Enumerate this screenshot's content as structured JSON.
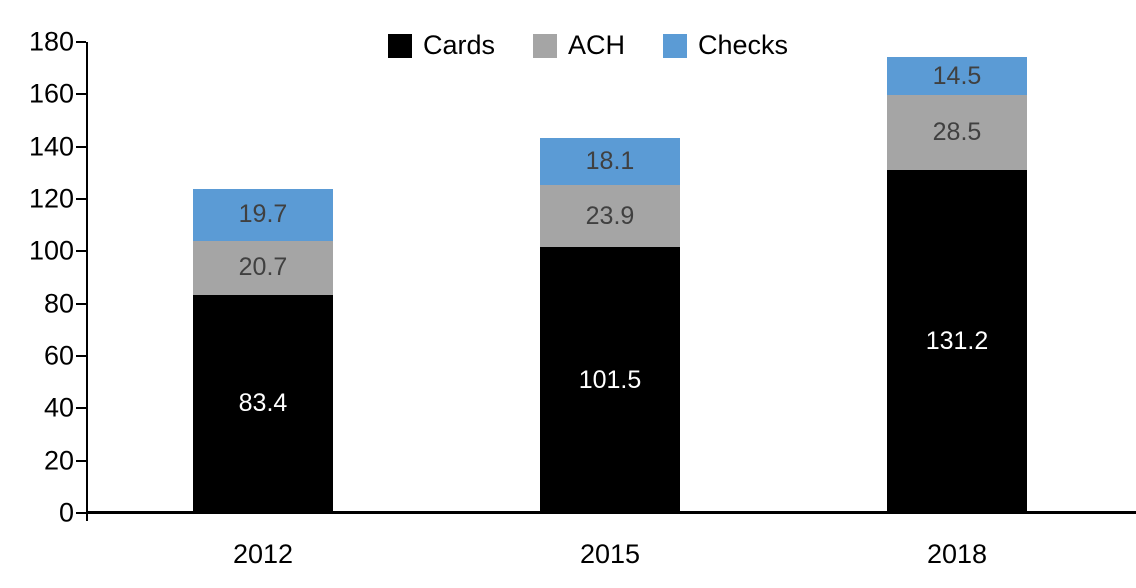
{
  "chart_data": {
    "type": "bar",
    "stacked": true,
    "title": "",
    "categories": [
      "2012",
      "2015",
      "2018"
    ],
    "series": [
      {
        "name": "Cards",
        "color": "#000000",
        "label_color": "#FFFFFF",
        "values": [
          83.4,
          101.5,
          131.2
        ]
      },
      {
        "name": "ACH",
        "color": "#A5A5A5",
        "label_color": "#404040",
        "values": [
          20.7,
          23.9,
          28.5
        ]
      },
      {
        "name": "Checks",
        "color": "#5B9BD5",
        "label_color": "#404040",
        "values": [
          19.7,
          18.1,
          14.5
        ]
      }
    ],
    "totals": [
      123.8,
      143.5,
      174.2
    ],
    "ylim": [
      0,
      180
    ],
    "ytick_step": 20,
    "ytick_labels": [
      "0",
      "20",
      "40",
      "60",
      "80",
      "100",
      "120",
      "140",
      "160",
      "180"
    ],
    "grid": false,
    "legend_position": "top-center",
    "legend_labels": [
      "Cards",
      "ACH",
      "Checks"
    ],
    "data_labels": true,
    "axis_color": "#000000",
    "background": "#FFFFFF"
  }
}
